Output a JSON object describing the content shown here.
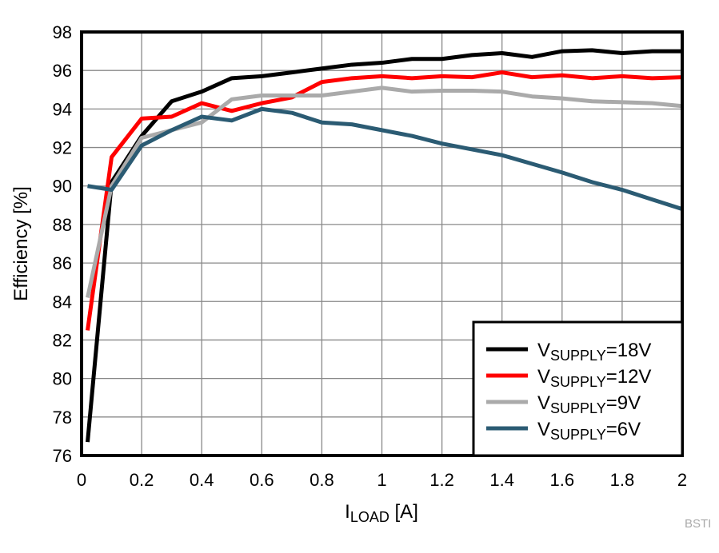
{
  "chart_data": {
    "type": "line",
    "xlabel": {
      "main": "I",
      "sub": "LOAD",
      "unit": " [A]"
    },
    "ylabel": "Efficiency [%]",
    "xlim": [
      0,
      2
    ],
    "ylim": [
      76,
      98
    ],
    "xticks": [
      "0",
      "0.2",
      "0.4",
      "0.6",
      "0.8",
      "1",
      "1.2",
      "1.4",
      "1.6",
      "1.8",
      "2"
    ],
    "yticks": [
      "76",
      "78",
      "80",
      "82",
      "84",
      "86",
      "88",
      "90",
      "92",
      "94",
      "96",
      "98"
    ],
    "grid": true,
    "legend_placement": "bottom-right",
    "x": [
      0.02,
      0.1,
      0.2,
      0.3,
      0.4,
      0.5,
      0.6,
      0.7,
      0.8,
      0.9,
      1.0,
      1.1,
      1.2,
      1.3,
      1.4,
      1.5,
      1.6,
      1.7,
      1.8,
      1.9,
      2.0
    ],
    "series": [
      {
        "name": "VSUPPLY=18V",
        "label_main": "V",
        "label_sub": "SUPPLY",
        "label_rest": "=18V",
        "color": "#000000",
        "values": [
          76.7,
          90.2,
          92.6,
          94.4,
          94.9,
          95.6,
          95.7,
          95.9,
          96.1,
          96.3,
          96.4,
          96.6,
          96.6,
          96.8,
          96.9,
          96.7,
          97.0,
          97.05,
          96.9,
          97.0,
          97.0
        ]
      },
      {
        "name": "VSUPPLY=12V",
        "label_main": "V",
        "label_sub": "SUPPLY",
        "label_rest": "=12V",
        "color": "#ff0000",
        "values": [
          82.5,
          91.5,
          93.5,
          93.6,
          94.3,
          93.9,
          94.3,
          94.6,
          95.4,
          95.6,
          95.7,
          95.6,
          95.7,
          95.65,
          95.9,
          95.65,
          95.75,
          95.6,
          95.7,
          95.6,
          95.65
        ]
      },
      {
        "name": "VSUPPLY=9V",
        "label_main": "V",
        "label_sub": "SUPPLY",
        "label_rest": "=9V",
        "color": "#aaaaaa",
        "values": [
          84.2,
          90.0,
          92.5,
          92.9,
          93.3,
          94.5,
          94.7,
          94.7,
          94.7,
          94.9,
          95.1,
          94.9,
          94.95,
          94.95,
          94.9,
          94.65,
          94.55,
          94.4,
          94.35,
          94.3,
          94.15
        ]
      },
      {
        "name": "VSUPPLY=6V",
        "label_main": "V",
        "label_sub": "SUPPLY",
        "label_rest": "=6V",
        "color": "#2b5b73",
        "values": [
          90.0,
          89.8,
          92.1,
          92.9,
          93.6,
          93.4,
          94.0,
          93.8,
          93.3,
          93.2,
          92.9,
          92.6,
          92.2,
          91.9,
          91.6,
          91.15,
          90.7,
          90.2,
          89.8,
          89.3,
          88.8
        ]
      }
    ]
  },
  "watermark": "BSTI"
}
